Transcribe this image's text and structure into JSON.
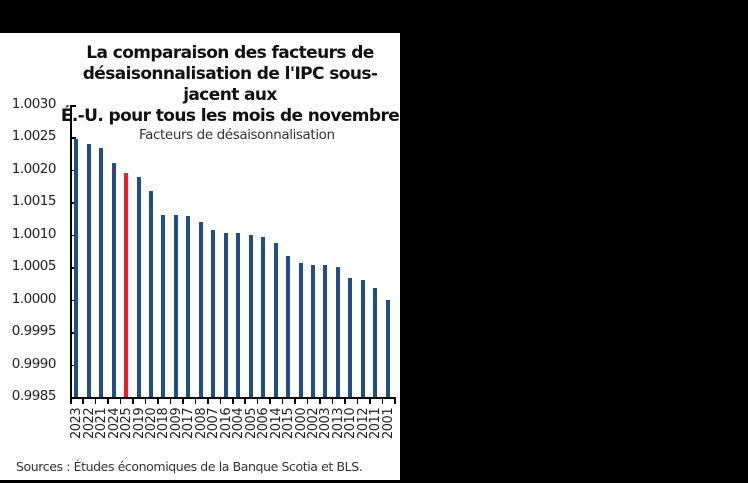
{
  "chart_data": {
    "type": "bar",
    "title": "La comparaison des facteurs de désaisonnalisation de l'IPC sous-jacent aux É.-U. pour tous les mois de novembre",
    "title_lines": [
      "La comparaison des facteurs de",
      "désaisonnalisation de l'IPC sous-jacent aux",
      "É.-U. pour tous les mois de novembre"
    ],
    "legend": "Facteurs de désaisonnalisation",
    "xlabel": "",
    "ylabel": "",
    "ylim": [
      0.9985,
      1.003
    ],
    "yticks": [
      "1.0030",
      "1.0025",
      "1.0020",
      "1.0015",
      "1.0010",
      "1.0005",
      "1.0000",
      "0.9995",
      "0.9990",
      "0.9985"
    ],
    "grid": false,
    "highlight_category": "2025",
    "colors": {
      "bar": "#1f4e8c",
      "highlight": "#ee1c25"
    },
    "categories": [
      "2023",
      "2022",
      "2021",
      "2024",
      "2025",
      "2019",
      "2020",
      "2018",
      "2009",
      "2017",
      "2008",
      "2007",
      "2016",
      "2004",
      "2005",
      "2006",
      "2014",
      "2015",
      "2000",
      "2002",
      "2003",
      "2013",
      "2010",
      "2012",
      "2011",
      "2001"
    ],
    "values": [
      1.00247,
      1.0024,
      1.00233,
      1.0021,
      1.00195,
      1.00189,
      1.00167,
      1.0013,
      1.0013,
      1.00129,
      1.0012,
      1.00107,
      1.00103,
      1.00102,
      1.001,
      1.00097,
      1.00088,
      1.00068,
      1.00056,
      1.00054,
      1.00053,
      1.0005,
      1.00033,
      1.0003,
      1.00018,
      1.0
    ],
    "source": "Sources : Études économiques de la Banque Scotia et BLS."
  }
}
